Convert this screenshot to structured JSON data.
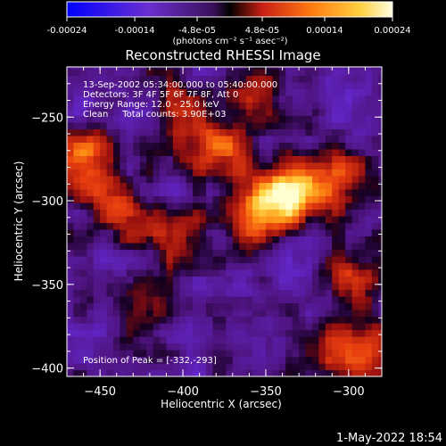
{
  "colorbar": {
    "tick_labels": [
      "-0.00024",
      "-0.00014",
      "-4.8e-05",
      "4.8e-05",
      "0.00014",
      "0.00024"
    ],
    "tick_values": [
      -0.00024,
      -0.00014,
      -4.8e-05,
      4.8e-05,
      0.00014,
      0.00024
    ],
    "range": [
      -0.00024,
      0.00024
    ],
    "unit_label": "(photons cm⁻² s⁻¹ asec⁻²)"
  },
  "chart_data": {
    "type": "heatmap",
    "title": "Reconstructed RHESSI Image",
    "xlabel": "Heliocentric X (arcsec)",
    "ylabel": "Heliocentric Y (arcsec)",
    "xlim": [
      -470,
      -280
    ],
    "ylim": [
      -405,
      -220
    ],
    "x_ticks": [
      -450,
      -400,
      -350,
      -300
    ],
    "y_ticks": [
      -400,
      -350,
      -300,
      -250
    ],
    "annotations": [
      "13-Sep-2002 05:34:00.000 to 05:40:00.000",
      "Detectors: 3F 4F 5F 6F 7F 8F, Att 0",
      "Energy Range: 12.0 - 25.0 keV",
      "Clean     Total counts: 3.90E+03"
    ],
    "peak_label": "Position of Peak = [-332,-293]",
    "peak_position": [
      -332,
      -293
    ],
    "sources": [
      {
        "x": -332,
        "y": -293,
        "amplitude": 1.0
      },
      {
        "x": -355,
        "y": -305,
        "amplitude": 0.75
      },
      {
        "x": -380,
        "y": -270,
        "amplitude": 0.55
      },
      {
        "x": -462,
        "y": -275,
        "amplitude": 0.65
      },
      {
        "x": -445,
        "y": -300,
        "amplitude": 0.45
      },
      {
        "x": -300,
        "y": -285,
        "amplitude": 0.45
      },
      {
        "x": -300,
        "y": -345,
        "amplitude": 0.55
      },
      {
        "x": -290,
        "y": -390,
        "amplitude": 0.5
      },
      {
        "x": -410,
        "y": -320,
        "amplitude": 0.4
      },
      {
        "x": -420,
        "y": -365,
        "amplitude": 0.35
      },
      {
        "x": -355,
        "y": -230,
        "amplitude": 0.4
      },
      {
        "x": -320,
        "y": -395,
        "amplitude": 0.35
      },
      {
        "x": -395,
        "y": -245,
        "amplitude": 0.35
      }
    ],
    "colormap": [
      "#0000ff",
      "#6a2fd0",
      "#5a1f8a",
      "#000000",
      "#c81e14",
      "#ff7a10",
      "#ffd040",
      "#ffffd0"
    ]
  },
  "footer": {
    "timestamp": "1-May-2022 18:54"
  }
}
